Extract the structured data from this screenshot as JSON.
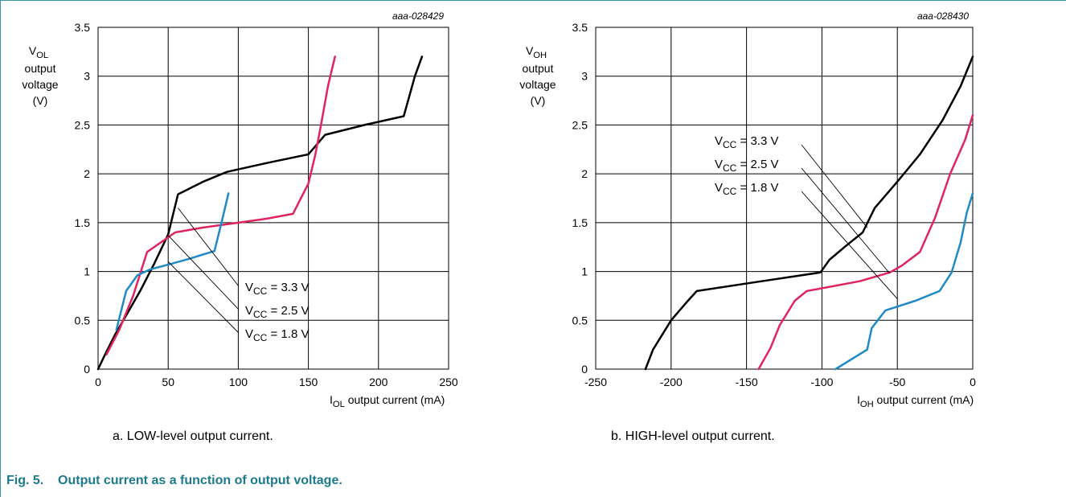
{
  "figure": {
    "number": "Fig. 5.",
    "title": "Output current as a function of output voltage."
  },
  "colors": {
    "frame": "#3a93a6",
    "title": "#1d7a8c",
    "vcc_3v3": "#000000",
    "vcc_2v5": "#e0245e",
    "vcc_1v8": "#1f8ac6"
  },
  "chart_data": [
    {
      "type": "line",
      "id": "aaa-028429",
      "caption": "a. LOW-level output current.",
      "xlabel_main": "I",
      "xlabel_sub": "OL",
      "xlabel_rest": " output current (mA)",
      "ylabel_main": "V",
      "ylabel_sub": "OL",
      "ylabel_lines": [
        "output",
        "voltage",
        "(V)"
      ],
      "xlim": [
        0,
        250
      ],
      "ylim": [
        0,
        3.5
      ],
      "xticks": [
        0,
        50,
        100,
        150,
        200,
        250
      ],
      "yticks": [
        0,
        0.5,
        1,
        1.5,
        2,
        2.5,
        3,
        3.5
      ],
      "xtick_labels": [
        "0",
        "50",
        "100",
        "150",
        "200",
        "250"
      ],
      "ytick_labels": [
        "0",
        "0.5",
        "1",
        "1.5",
        "2",
        "2.5",
        "3",
        "3.5"
      ],
      "grid": true,
      "series": [
        {
          "name": "VCC = 3.3 V",
          "label_main": "V",
          "label_sub": "CC",
          "label_rest": " = 3.3 V",
          "color": "#000000",
          "points": [
            [
              0,
              0
            ],
            [
              5,
              0.15
            ],
            [
              12,
              0.35
            ],
            [
              20,
              0.55
            ],
            [
              30,
              0.8
            ],
            [
              40,
              1.08
            ],
            [
              50,
              1.38
            ],
            [
              57,
              1.79
            ],
            [
              75,
              1.92
            ],
            [
              92,
              2.02
            ],
            [
              120,
              2.11
            ],
            [
              150,
              2.2
            ],
            [
              162,
              2.4
            ],
            [
              190,
              2.5
            ],
            [
              218,
              2.59
            ],
            [
              226,
              3.0
            ],
            [
              231,
              3.2
            ]
          ]
        },
        {
          "name": "VCC = 2.5 V",
          "label_main": "V",
          "label_sub": "CC",
          "label_rest": " = 2.5 V",
          "color": "#e0245e",
          "points": [
            [
              6,
              0.15
            ],
            [
              15,
              0.4
            ],
            [
              25,
              0.75
            ],
            [
              35,
              1.2
            ],
            [
              45,
              1.3
            ],
            [
              55,
              1.4
            ],
            [
              75,
              1.45
            ],
            [
              100,
              1.5
            ],
            [
              120,
              1.54
            ],
            [
              139,
              1.59
            ],
            [
              150,
              1.9
            ],
            [
              155,
              2.2
            ],
            [
              159,
              2.5
            ],
            [
              164,
              2.9
            ],
            [
              169,
              3.2
            ]
          ]
        },
        {
          "name": "VCC = 1.8 V",
          "label_main": "V",
          "label_sub": "CC",
          "label_rest": " = 1.8 V",
          "color": "#1f8ac6",
          "points": [
            [
              13,
              0.4
            ],
            [
              20,
              0.8
            ],
            [
              28,
              0.96
            ],
            [
              37,
              1.02
            ],
            [
              50,
              1.07
            ],
            [
              65,
              1.13
            ],
            [
              83,
              1.21
            ],
            [
              88,
              1.5
            ],
            [
              93,
              1.8
            ]
          ]
        }
      ]
    },
    {
      "type": "line",
      "id": "aaa-028430",
      "caption": "b. HIGH-level output current.",
      "xlabel_main": "I",
      "xlabel_sub": "OH",
      "xlabel_rest": " output current (mA)",
      "ylabel_main": "V",
      "ylabel_sub": "OH",
      "ylabel_lines": [
        "output",
        "voltage",
        "(V)"
      ],
      "xlim": [
        -250,
        0
      ],
      "ylim": [
        0,
        3.5
      ],
      "xticks": [
        -250,
        -200,
        -150,
        -100,
        -50,
        0
      ],
      "yticks": [
        0,
        0.5,
        1,
        1.5,
        2,
        2.5,
        3,
        3.5
      ],
      "xtick_labels": [
        "-250",
        "-200",
        "-150",
        "-100",
        "-50",
        "0"
      ],
      "ytick_labels": [
        "0",
        "0.5",
        "1",
        "1.5",
        "2",
        "2.5",
        "3",
        "3.5"
      ],
      "grid": true,
      "series": [
        {
          "name": "VCC = 3.3 V",
          "label_main": "V",
          "label_sub": "CC",
          "label_rest": " = 3.3 V",
          "color": "#000000",
          "points": [
            [
              -217,
              0
            ],
            [
              -212,
              0.2
            ],
            [
              -200,
              0.5
            ],
            [
              -190,
              0.68
            ],
            [
              -183,
              0.8
            ],
            [
              -140,
              0.9
            ],
            [
              -101,
              0.99
            ],
            [
              -95,
              1.12
            ],
            [
              -85,
              1.25
            ],
            [
              -73,
              1.4
            ],
            [
              -65,
              1.65
            ],
            [
              -50,
              1.92
            ],
            [
              -35,
              2.2
            ],
            [
              -20,
              2.55
            ],
            [
              -8,
              2.9
            ],
            [
              0,
              3.2
            ]
          ]
        },
        {
          "name": "VCC = 2.5 V",
          "label_main": "V",
          "label_sub": "CC",
          "label_rest": " = 2.5 V",
          "color": "#e0245e",
          "points": [
            [
              -142,
              0
            ],
            [
              -134,
              0.22
            ],
            [
              -128,
              0.45
            ],
            [
              -118,
              0.7
            ],
            [
              -110,
              0.8
            ],
            [
              -75,
              0.9
            ],
            [
              -55,
              0.99
            ],
            [
              -47,
              1.06
            ],
            [
              -35,
              1.2
            ],
            [
              -25,
              1.55
            ],
            [
              -15,
              2.0
            ],
            [
              -5,
              2.35
            ],
            [
              0,
              2.6
            ]
          ]
        },
        {
          "name": "VCC = 1.8 V",
          "label_main": "V",
          "label_sub": "CC",
          "label_rest": " = 1.8 V",
          "color": "#1f8ac6",
          "points": [
            [
              -91,
              0
            ],
            [
              -70,
              0.2
            ],
            [
              -67,
              0.42
            ],
            [
              -63,
              0.5
            ],
            [
              -58,
              0.6
            ],
            [
              -38,
              0.7
            ],
            [
              -22,
              0.8
            ],
            [
              -14,
              0.99
            ],
            [
              -8,
              1.3
            ],
            [
              -4,
              1.6
            ],
            [
              0,
              1.8
            ]
          ]
        }
      ]
    }
  ]
}
